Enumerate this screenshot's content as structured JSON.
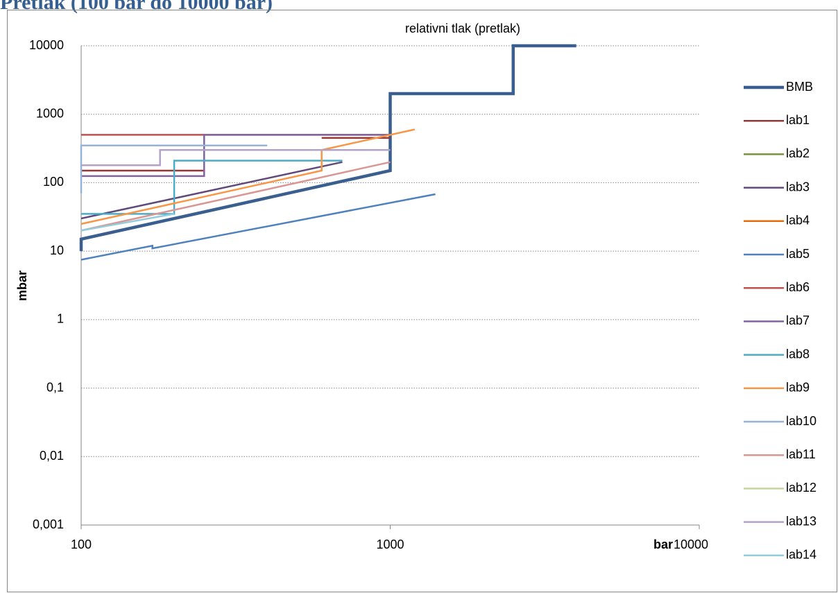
{
  "header": {
    "title": "Pretlak (100 bar do 10000 bar)"
  },
  "chart_data": {
    "type": "line",
    "title": "relativni tlak (pretlak)",
    "x_label": "bar",
    "y_label": "mbar",
    "x_log": true,
    "y_log": true,
    "grid": true,
    "legend": "right",
    "xlim": [
      100,
      10000
    ],
    "xticks": [
      100,
      1000,
      10000
    ],
    "ylim": [
      0.001,
      10000
    ],
    "yticks": [
      {
        "value": 0.001,
        "label": "0,001"
      },
      {
        "value": 0.01,
        "label": "0,01"
      },
      {
        "value": 0.1,
        "label": "0,1"
      },
      1,
      10,
      100,
      1000,
      10000
    ],
    "series": [
      {
        "name": "BMB",
        "color": "#3a5f8f",
        "x": [
          100,
          100,
          1000,
          1000,
          2500,
          2500,
          4000
        ],
        "values": [
          10,
          15,
          150,
          2000,
          2000,
          10000,
          10000
        ]
      },
      {
        "name": "lab1",
        "color": "#953735",
        "x": [
          100,
          250,
          600,
          600,
          1000
        ],
        "values": [
          150,
          150,
          null,
          450,
          450
        ]
      },
      {
        "name": "lab2",
        "color": "#77933c",
        "x": [],
        "values": []
      },
      {
        "name": "lab3",
        "color": "#604a7b",
        "x": [
          100,
          700
        ],
        "values": [
          30,
          200
        ]
      },
      {
        "name": "lab4",
        "color": "#e46c0a",
        "x": [],
        "values": []
      },
      {
        "name": "lab5",
        "color": "#4f81bd",
        "x": [
          100,
          170,
          170,
          1400
        ],
        "values": [
          7.5,
          12,
          11,
          68
        ]
      },
      {
        "name": "lab6",
        "color": "#c0504d",
        "x": [
          100,
          1000
        ],
        "values": [
          500,
          500
        ]
      },
      {
        "name": "lab7",
        "color": "#8064a2",
        "x": [
          100,
          250,
          250,
          1000
        ],
        "values": [
          125,
          125,
          500,
          500
        ]
      },
      {
        "name": "lab8",
        "color": "#4bacc6",
        "x": [
          100,
          200,
          200,
          700
        ],
        "values": [
          35,
          35,
          210,
          210
        ]
      },
      {
        "name": "lab9",
        "color": "#f79646",
        "x": [
          100,
          600,
          600,
          1200
        ],
        "values": [
          25,
          150,
          300,
          600
        ]
      },
      {
        "name": "lab10",
        "color": "#95b3d7",
        "x": [
          100,
          100,
          400
        ],
        "values": [
          70,
          350,
          350
        ]
      },
      {
        "name": "lab11",
        "color": "#d99694",
        "x": [
          100,
          1000
        ],
        "values": [
          20,
          200
        ]
      },
      {
        "name": "lab12",
        "color": "#c3d69b",
        "x": [],
        "values": []
      },
      {
        "name": "lab13",
        "color": "#b3a2c7",
        "x": [
          100,
          180,
          180,
          1000
        ],
        "values": [
          180,
          180,
          300,
          300
        ]
      },
      {
        "name": "lab14",
        "color": "#93cddd",
        "x": [
          100,
          200
        ],
        "values": [
          20,
          35
        ]
      }
    ]
  }
}
